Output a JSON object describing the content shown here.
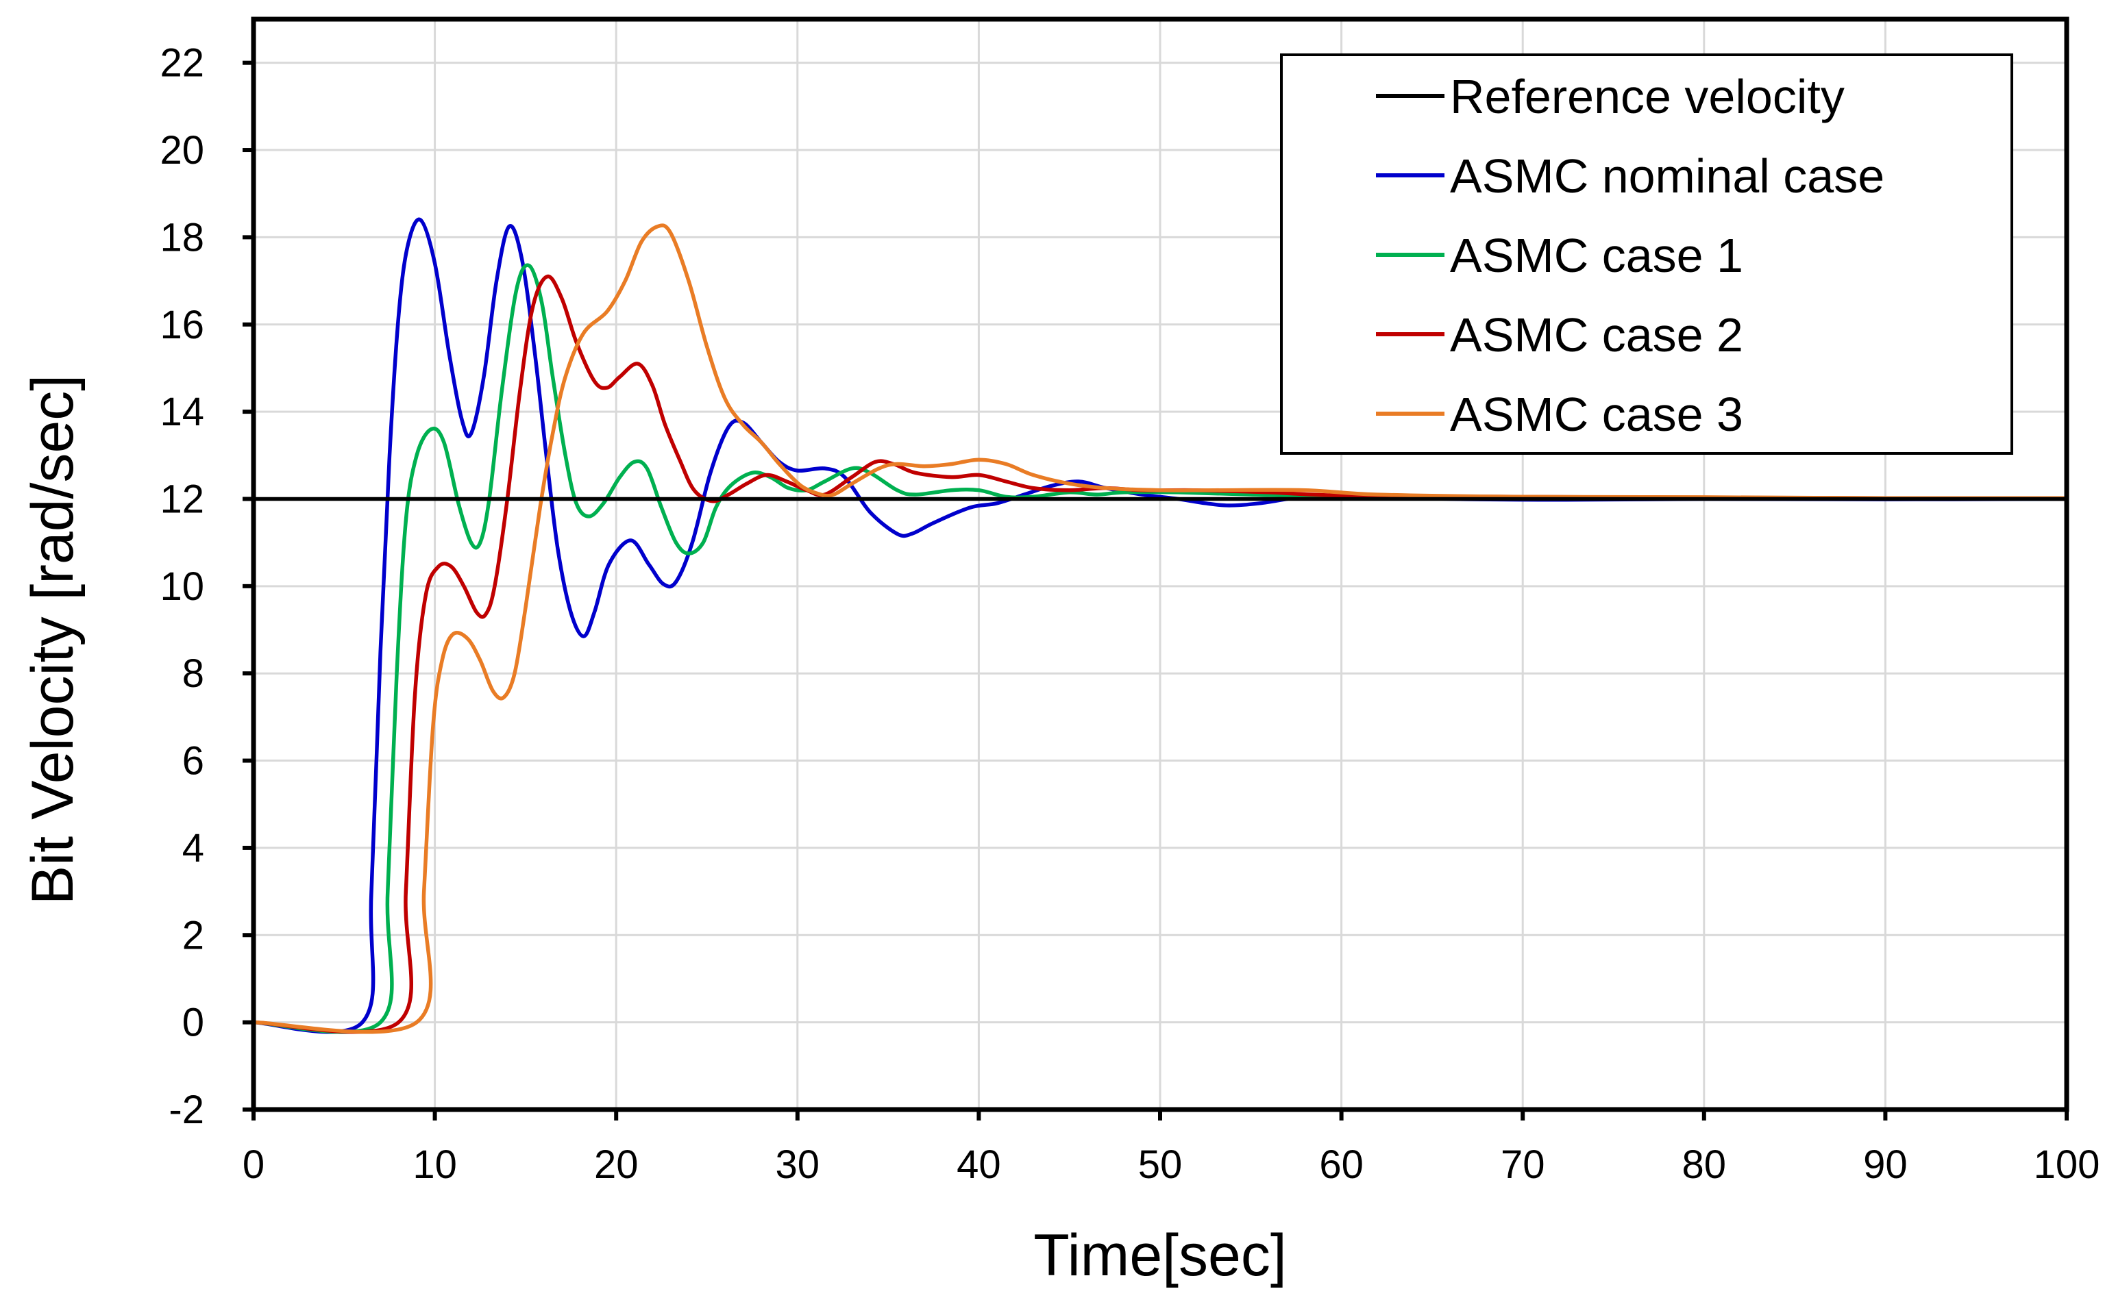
{
  "chart_data": {
    "type": "line",
    "title": "",
    "xlabel": "Time[sec]",
    "ylabel": "Bit Velocity [rad/sec]",
    "xlim": [
      0,
      100
    ],
    "ylim": [
      -2,
      23
    ],
    "xticks": [
      0,
      10,
      20,
      30,
      40,
      50,
      60,
      70,
      80,
      90,
      100
    ],
    "yticks": [
      -2,
      0,
      2,
      4,
      6,
      8,
      10,
      12,
      14,
      16,
      18,
      20,
      22
    ],
    "xtick_labels": [
      "0",
      "10",
      "20",
      "30",
      "40",
      "50",
      "60",
      "70",
      "80",
      "90",
      "100"
    ],
    "ytick_labels": [
      "-2",
      "0",
      "2",
      "4",
      "6",
      "8",
      "10",
      "12",
      "14",
      "16",
      "18",
      "20",
      "22"
    ],
    "grid": true,
    "legend_position": "top-right",
    "series": [
      {
        "name": "Reference velocity",
        "color": "#000000",
        "points": [
          [
            0,
            12
          ],
          [
            100,
            12
          ]
        ]
      },
      {
        "name": "ASMC nominal case",
        "color": "#0000cc",
        "points": [
          [
            0,
            0
          ],
          [
            6,
            0
          ],
          [
            6.5,
            3
          ],
          [
            7,
            8.5
          ],
          [
            7.5,
            13
          ],
          [
            8,
            16.2
          ],
          [
            8.5,
            17.8
          ],
          [
            9.2,
            18.4
          ],
          [
            10,
            17.4
          ],
          [
            10.8,
            15.3
          ],
          [
            11.5,
            13.8
          ],
          [
            12,
            13.5
          ],
          [
            12.7,
            14.8
          ],
          [
            13.4,
            17
          ],
          [
            14.1,
            18.25
          ],
          [
            14.8,
            17.5
          ],
          [
            15.5,
            15.4
          ],
          [
            16.2,
            12.8
          ],
          [
            16.8,
            10.8
          ],
          [
            17.5,
            9.4
          ],
          [
            18.2,
            8.85
          ],
          [
            18.8,
            9.4
          ],
          [
            19.6,
            10.5
          ],
          [
            20.8,
            11.05
          ],
          [
            21.8,
            10.5
          ],
          [
            22.6,
            10.05
          ],
          [
            23.3,
            10.1
          ],
          [
            24.2,
            11
          ],
          [
            25.2,
            12.6
          ],
          [
            26.2,
            13.65
          ],
          [
            27,
            13.75
          ],
          [
            28,
            13.3
          ],
          [
            29,
            12.85
          ],
          [
            30,
            12.65
          ],
          [
            31.5,
            12.7
          ],
          [
            32.6,
            12.5
          ],
          [
            34,
            11.7
          ],
          [
            35.5,
            11.2
          ],
          [
            36.3,
            11.2
          ],
          [
            37.5,
            11.45
          ],
          [
            39.5,
            11.8
          ],
          [
            41,
            11.9
          ],
          [
            42.5,
            12.1
          ],
          [
            44,
            12.3
          ],
          [
            45.5,
            12.4
          ],
          [
            47,
            12.25
          ],
          [
            49,
            12.1
          ],
          [
            51,
            12
          ],
          [
            52.5,
            11.9
          ],
          [
            53.8,
            11.85
          ],
          [
            55.5,
            11.9
          ],
          [
            57,
            12
          ],
          [
            58,
            12.05
          ],
          [
            62,
            12.05
          ],
          [
            66,
            12
          ],
          [
            72,
            11.98
          ],
          [
            80,
            12
          ],
          [
            90,
            11.99
          ],
          [
            100,
            12
          ]
        ]
      },
      {
        "name": "ASMC case 1",
        "color": "#00b050",
        "points": [
          [
            0,
            0
          ],
          [
            7,
            0
          ],
          [
            7.4,
            3
          ],
          [
            7.9,
            8
          ],
          [
            8.4,
            11.5
          ],
          [
            9,
            13
          ],
          [
            9.8,
            13.6
          ],
          [
            10.5,
            13.3
          ],
          [
            11.3,
            11.9
          ],
          [
            12,
            11
          ],
          [
            12.5,
            11
          ],
          [
            13,
            12
          ],
          [
            13.7,
            14.5
          ],
          [
            14.5,
            16.8
          ],
          [
            15.2,
            17.35
          ],
          [
            15.9,
            16.5
          ],
          [
            16.5,
            14.8
          ],
          [
            17.2,
            13
          ],
          [
            17.8,
            11.9
          ],
          [
            18.5,
            11.6
          ],
          [
            19.3,
            11.9
          ],
          [
            20.2,
            12.5
          ],
          [
            21,
            12.85
          ],
          [
            21.7,
            12.7
          ],
          [
            22.5,
            11.8
          ],
          [
            23.3,
            11
          ],
          [
            24,
            10.75
          ],
          [
            24.8,
            11
          ],
          [
            25.5,
            11.8
          ],
          [
            26.3,
            12.3
          ],
          [
            27.5,
            12.6
          ],
          [
            28.5,
            12.5
          ],
          [
            29.5,
            12.25
          ],
          [
            30.5,
            12.2
          ],
          [
            31.5,
            12.4
          ],
          [
            33,
            12.7
          ],
          [
            34,
            12.6
          ],
          [
            35.5,
            12.2
          ],
          [
            36.5,
            12.1
          ],
          [
            38.5,
            12.2
          ],
          [
            40,
            12.2
          ],
          [
            41.5,
            12.05
          ],
          [
            43,
            12.05
          ],
          [
            45,
            12.15
          ],
          [
            46.5,
            12.1
          ],
          [
            48,
            12.15
          ],
          [
            51,
            12.15
          ],
          [
            55,
            12.1
          ],
          [
            60,
            12.05
          ],
          [
            70,
            12.02
          ],
          [
            80,
            12.02
          ],
          [
            90,
            12.01
          ],
          [
            100,
            12
          ]
        ]
      },
      {
        "name": "ASMC case 2",
        "color": "#c00000",
        "points": [
          [
            0,
            0
          ],
          [
            8,
            0
          ],
          [
            8.4,
            3
          ],
          [
            8.9,
            7.5
          ],
          [
            9.5,
            9.8
          ],
          [
            10.2,
            10.45
          ],
          [
            10.9,
            10.45
          ],
          [
            11.6,
            10
          ],
          [
            12.3,
            9.4
          ],
          [
            12.8,
            9.35
          ],
          [
            13.3,
            10
          ],
          [
            14,
            12
          ],
          [
            14.7,
            14.5
          ],
          [
            15.4,
            16.4
          ],
          [
            16.2,
            17.1
          ],
          [
            17,
            16.6
          ],
          [
            17.8,
            15.6
          ],
          [
            18.8,
            14.7
          ],
          [
            19.5,
            14.55
          ],
          [
            20.2,
            14.8
          ],
          [
            21.2,
            15.1
          ],
          [
            22,
            14.6
          ],
          [
            22.7,
            13.7
          ],
          [
            23.5,
            12.9
          ],
          [
            24.3,
            12.2
          ],
          [
            25.3,
            11.95
          ],
          [
            26.2,
            12.1
          ],
          [
            27.2,
            12.35
          ],
          [
            28.3,
            12.55
          ],
          [
            29.4,
            12.4
          ],
          [
            30.5,
            12.2
          ],
          [
            31.5,
            12.1
          ],
          [
            33,
            12.5
          ],
          [
            34.3,
            12.85
          ],
          [
            35.3,
            12.8
          ],
          [
            36.5,
            12.6
          ],
          [
            38.5,
            12.5
          ],
          [
            40,
            12.55
          ],
          [
            41.5,
            12.4
          ],
          [
            43,
            12.25
          ],
          [
            45,
            12.2
          ],
          [
            47,
            12.25
          ],
          [
            49,
            12.2
          ],
          [
            52,
            12.2
          ],
          [
            56,
            12.15
          ],
          [
            60,
            12.08
          ],
          [
            70,
            12.05
          ],
          [
            80,
            12.03
          ],
          [
            90,
            12.02
          ],
          [
            100,
            12
          ]
        ]
      },
      {
        "name": "ASMC case 3",
        "color": "#e97c25",
        "points": [
          [
            0,
            0
          ],
          [
            9,
            0
          ],
          [
            9.4,
            3
          ],
          [
            9.9,
            6.8
          ],
          [
            10.4,
            8.3
          ],
          [
            11,
            8.9
          ],
          [
            11.8,
            8.8
          ],
          [
            12.5,
            8.3
          ],
          [
            13.2,
            7.6
          ],
          [
            13.8,
            7.45
          ],
          [
            14.4,
            8
          ],
          [
            15,
            9.5
          ],
          [
            15.8,
            11.8
          ],
          [
            16.5,
            13.5
          ],
          [
            17.2,
            14.8
          ],
          [
            18.2,
            15.8
          ],
          [
            19.5,
            16.3
          ],
          [
            20.5,
            17
          ],
          [
            21.4,
            17.9
          ],
          [
            22.3,
            18.25
          ],
          [
            23,
            18.1
          ],
          [
            24,
            17
          ],
          [
            25,
            15.5
          ],
          [
            26,
            14.3
          ],
          [
            27,
            13.7
          ],
          [
            28,
            13.3
          ],
          [
            29,
            12.8
          ],
          [
            30.2,
            12.3
          ],
          [
            31.3,
            12.1
          ],
          [
            32,
            12.1
          ],
          [
            33,
            12.35
          ],
          [
            34.5,
            12.7
          ],
          [
            35.5,
            12.8
          ],
          [
            37,
            12.75
          ],
          [
            38.5,
            12.8
          ],
          [
            40,
            12.9
          ],
          [
            41.5,
            12.8
          ],
          [
            43,
            12.55
          ],
          [
            45,
            12.35
          ],
          [
            47,
            12.25
          ],
          [
            50,
            12.2
          ],
          [
            53,
            12.2
          ],
          [
            58,
            12.2
          ],
          [
            62,
            12.1
          ],
          [
            70,
            12.05
          ],
          [
            80,
            12.04
          ],
          [
            90,
            12.02
          ],
          [
            100,
            12.02
          ]
        ]
      }
    ]
  },
  "legend": {
    "items": [
      {
        "label": "Reference velocity",
        "color": "#000000"
      },
      {
        "label": "ASMC nominal case",
        "color": "#0000cc"
      },
      {
        "label": "ASMC case 1",
        "color": "#00b050"
      },
      {
        "label": "ASMC case 2",
        "color": "#c00000"
      },
      {
        "label": "ASMC case 3",
        "color": "#e97c25"
      }
    ]
  }
}
